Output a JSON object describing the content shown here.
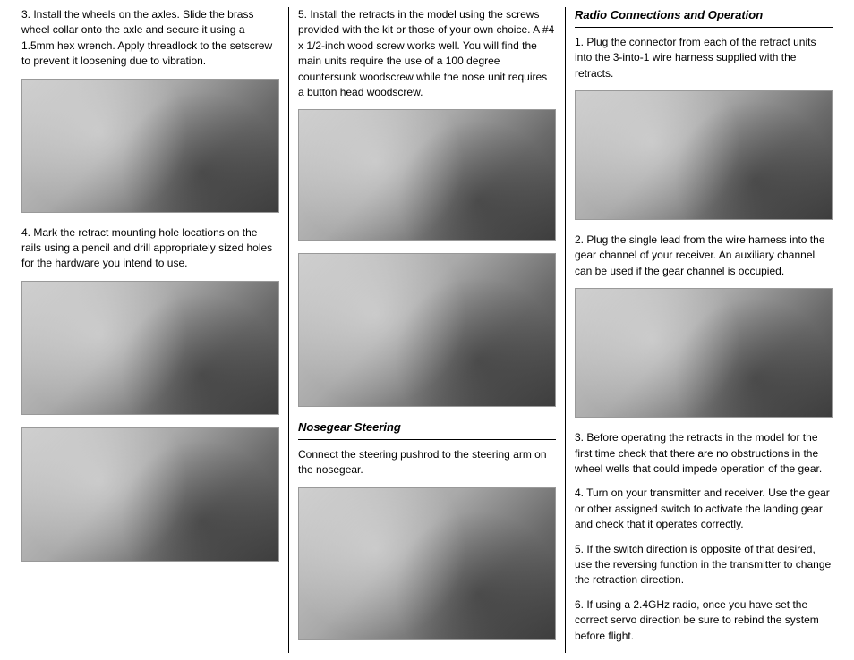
{
  "col1": {
    "step3": "3. Install the wheels on the axles. Slide the brass wheel collar onto the axle and secure it using a 1.5mm hex wrench. Apply threadlock to the setscrew to prevent it loosening due to vibration.",
    "step4": "4. Mark the retract mounting hole locations on the rails using a pencil and drill appropriately sized holes for the hardware you intend to use."
  },
  "col2": {
    "step5": "5. Install the retracts in the model using the screws provided with the kit or those of your own choice. A #4 x 1/2-inch wood screw works well. You will find the main units require the use of a 100 degree countersunk woodscrew while the nose unit requires a button head woodscrew.",
    "heading1": "Nosegear Steering",
    "nosegear": "Connect the steering pushrod to the steering arm on the nosegear."
  },
  "col3": {
    "heading2": "Radio Connections and Operation",
    "r1": "1. Plug the connector from each of the retract units into the 3-into-1 wire harness supplied with the retracts.",
    "r2": "2. Plug the single lead from the wire harness into the gear channel of your receiver. An auxiliary channel can be used if the gear channel is occupied.",
    "r3": "3. Before operating the retracts in the model for the first time check that there are no obstructions in the wheel wells that could impede operation of the gear.",
    "r4": "4. Turn on your transmitter and receiver. Use the gear or other assigned switch to activate the landing gear and check that it operates correctly.",
    "r5": "5. If the switch direction is opposite of that desired, use the reversing function in the transmitter to change the retraction direction.",
    "r6": "6. If using a 2.4GHz radio, once you have set the correct servo direction be sure to rebind the system before flight."
  }
}
